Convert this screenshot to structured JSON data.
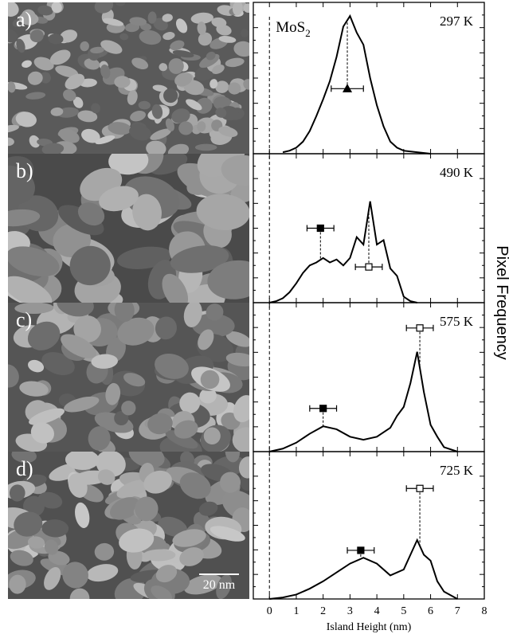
{
  "figure": {
    "ylabel": "Pixel Frequency",
    "reference_x": 0,
    "annotation": {
      "text": "MoS",
      "subscript": "2"
    }
  },
  "images": [
    {
      "label": "a)"
    },
    {
      "label": "b)"
    },
    {
      "label": "c)"
    },
    {
      "label": "d)",
      "scale_bar": "20 nm"
    }
  ],
  "chart_data": [
    {
      "type": "line",
      "label": "297 K",
      "xlim": [
        -0.6,
        8
      ],
      "ylim": [
        0,
        10
      ],
      "x": [
        0.5,
        0.75,
        1.0,
        1.25,
        1.5,
        1.75,
        2.0,
        2.25,
        2.5,
        2.75,
        3.0,
        3.25,
        3.5,
        3.75,
        4.0,
        4.25,
        4.5,
        4.75,
        5.0,
        5.5,
        6.0
      ],
      "series": [
        {
          "color": "#000000",
          "values": [
            0.1,
            0.2,
            0.4,
            0.8,
            1.5,
            2.5,
            3.6,
            4.8,
            6.4,
            8.4,
            9.1,
            8.0,
            7.2,
            5.0,
            3.2,
            1.8,
            0.8,
            0.4,
            0.2,
            0.1,
            0.0
          ]
        }
      ],
      "points": [
        {
          "x": 2.9,
          "y": 4.3,
          "xerr": 0.6,
          "marker": "triangle",
          "fill": "#000000"
        }
      ]
    },
    {
      "type": "line",
      "label": "490 K",
      "xlim": [
        -0.6,
        8
      ],
      "ylim": [
        0,
        10
      ],
      "x": [
        0,
        0.25,
        0.5,
        0.75,
        1.0,
        1.25,
        1.5,
        1.75,
        2.0,
        2.25,
        2.5,
        2.75,
        3.0,
        3.25,
        3.5,
        3.75,
        4.0,
        4.25,
        4.5,
        4.75,
        5.0,
        5.25,
        5.5
      ],
      "series": [
        {
          "color": "#000000",
          "values": [
            0,
            0.1,
            0.3,
            0.7,
            1.3,
            2.0,
            2.5,
            2.7,
            3.0,
            2.7,
            2.9,
            2.5,
            3.0,
            4.4,
            3.9,
            6.8,
            3.9,
            4.2,
            2.3,
            1.8,
            0.4,
            0.1,
            0
          ]
        }
      ],
      "points": [
        {
          "x": 1.9,
          "y": 5.0,
          "xerr": 0.5,
          "marker": "square",
          "fill": "#000000"
        },
        {
          "x": 3.7,
          "y": 2.4,
          "xerr": 0.5,
          "marker": "square",
          "fill": "#ffffff"
        }
      ]
    },
    {
      "type": "line",
      "label": "575 K",
      "xlim": [
        -0.6,
        8
      ],
      "ylim": [
        0,
        10
      ],
      "x": [
        0,
        0.5,
        1.0,
        1.5,
        2.0,
        2.5,
        3.0,
        3.5,
        4.0,
        4.5,
        4.75,
        5.0,
        5.25,
        5.5,
        5.75,
        6.0,
        6.25,
        6.5,
        7.0
      ],
      "series": [
        {
          "color": "#000000",
          "values": [
            0,
            0.2,
            0.6,
            1.2,
            1.7,
            1.5,
            1.0,
            0.8,
            1.0,
            1.6,
            2.4,
            3.0,
            4.6,
            6.7,
            4.0,
            1.8,
            1.0,
            0.3,
            0
          ]
        }
      ],
      "points": [
        {
          "x": 2.0,
          "y": 2.9,
          "xerr": 0.5,
          "marker": "square",
          "fill": "#000000"
        },
        {
          "x": 5.6,
          "y": 8.3,
          "xerr": 0.5,
          "marker": "square",
          "fill": "#ffffff"
        }
      ]
    },
    {
      "type": "line",
      "label": "725 K",
      "xlim": [
        -0.6,
        8
      ],
      "ylim": [
        0,
        10
      ],
      "x": [
        0,
        0.5,
        1.0,
        1.5,
        2.0,
        2.5,
        3.0,
        3.5,
        4.0,
        4.5,
        5.0,
        5.25,
        5.5,
        5.75,
        6.0,
        6.25,
        6.5,
        7.0
      ],
      "series": [
        {
          "color": "#000000",
          "values": [
            0,
            0.1,
            0.3,
            0.7,
            1.2,
            1.8,
            2.4,
            2.8,
            2.4,
            1.6,
            2.0,
            3.0,
            4.0,
            3.0,
            2.6,
            1.2,
            0.5,
            0
          ]
        }
      ],
      "points": [
        {
          "x": 3.4,
          "y": 3.3,
          "xerr": 0.5,
          "marker": "square",
          "fill": "#000000"
        },
        {
          "x": 5.6,
          "y": 7.5,
          "xerr": 0.5,
          "marker": "square",
          "fill": "#ffffff"
        }
      ],
      "xlabel": "Island Height (nm)",
      "xticks": [
        0,
        1,
        2,
        3,
        4,
        5,
        6,
        7,
        8
      ]
    }
  ]
}
